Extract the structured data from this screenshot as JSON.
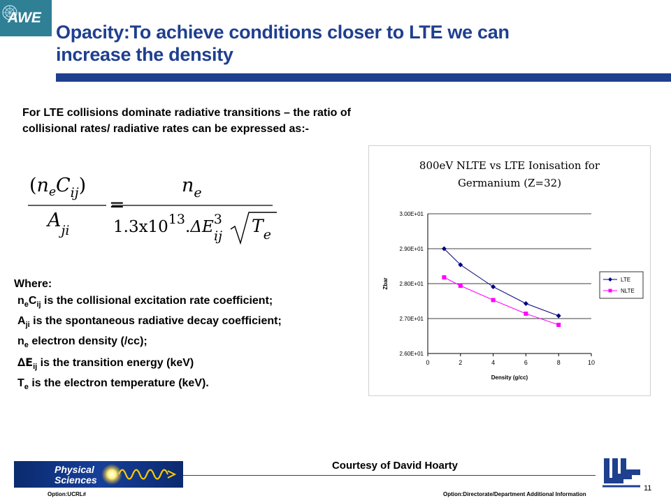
{
  "header": {
    "logo_text": "AWE",
    "title_line1": "Opacity:To achieve conditions closer to LTE we can",
    "title_line2": "increase the density"
  },
  "intro": "For LTE collisions dominate radiative transitions – the ratio of collisional rates/ radiative rates can be expressed as:-",
  "formula": {
    "lhs_num_n": "n",
    "lhs_num_e": "e",
    "lhs_num_C": "C",
    "lhs_num_ij": "ij",
    "lhs_den_A": "A",
    "lhs_den_ji": "ji",
    "equals": "=",
    "rhs_num_n": "n",
    "rhs_num_e": "e",
    "rhs_den_coef": "1.3x10",
    "rhs_den_exp": "13",
    "rhs_den_dot": ".",
    "rhs_den_dE": "ΔE",
    "rhs_den_ij": "ij",
    "rhs_den_pow": "3",
    "rhs_den_T": "T",
    "rhs_den_e": "e"
  },
  "where": {
    "heading": "Where:",
    "items": [
      {
        "sym": "n",
        "sub1": "e",
        "sym2": "C",
        "sub2": "ij",
        "text": " is the collisional excitation rate coefficient;"
      },
      {
        "sym": "A",
        "sub1": "ji",
        "text": " is the spontaneous radiative decay coefficient;"
      },
      {
        "sym": "n",
        "sub1": "e",
        "text": " electron density (/cc);"
      },
      {
        "sym": "∆E",
        "sub1": "ij",
        "text": " is the transition energy (keV)"
      },
      {
        "sym": "T",
        "sub1": "e",
        "text": " is the electron temperature (keV)."
      }
    ]
  },
  "chart_data": {
    "type": "line",
    "title": "800eV NLTE vs LTE Ionisation for Germanium (Z=32)",
    "xlabel": "Density (g/cc)",
    "ylabel": "Zbar",
    "xlim": [
      0,
      10
    ],
    "ylim": [
      26.0,
      30.0
    ],
    "x_ticks": [
      0,
      2,
      4,
      6,
      8,
      10
    ],
    "y_ticks": [
      "2.60E+01",
      "2.70E+01",
      "2.80E+01",
      "2.90E+01",
      "3.00E+01"
    ],
    "grid": "horizontal",
    "legend_position": "right",
    "series": [
      {
        "name": "LTE",
        "color": "#000080",
        "marker": "diamond",
        "x": [
          1,
          2,
          4,
          6,
          8
        ],
        "y": [
          29.0,
          28.54,
          27.91,
          27.43,
          27.08
        ]
      },
      {
        "name": "NLTE",
        "color": "#ff00ff",
        "marker": "square",
        "x": [
          1,
          2,
          4,
          6,
          8
        ],
        "y": [
          28.18,
          27.94,
          27.53,
          27.14,
          26.82
        ]
      }
    ]
  },
  "footer": {
    "logo_line1": "Physical",
    "logo_line2": "Sciences",
    "courtesy": "Courtesy of David Hoarty",
    "left_text": "Option:UCRL#",
    "right_text": "Option:Directorate/Department  Additional Information",
    "page_number": "11"
  },
  "colors": {
    "title": "#1f3f8f",
    "rule": "#1f3f8f",
    "awe_logo_bg": "#2f7f95",
    "lte": "#000080",
    "nlte": "#ff00ff"
  },
  "icons": {
    "awe_logo": "awe-logo",
    "physical_sciences_logo": "physical-sciences-logo",
    "llnl_logo": "llnl-logo"
  }
}
